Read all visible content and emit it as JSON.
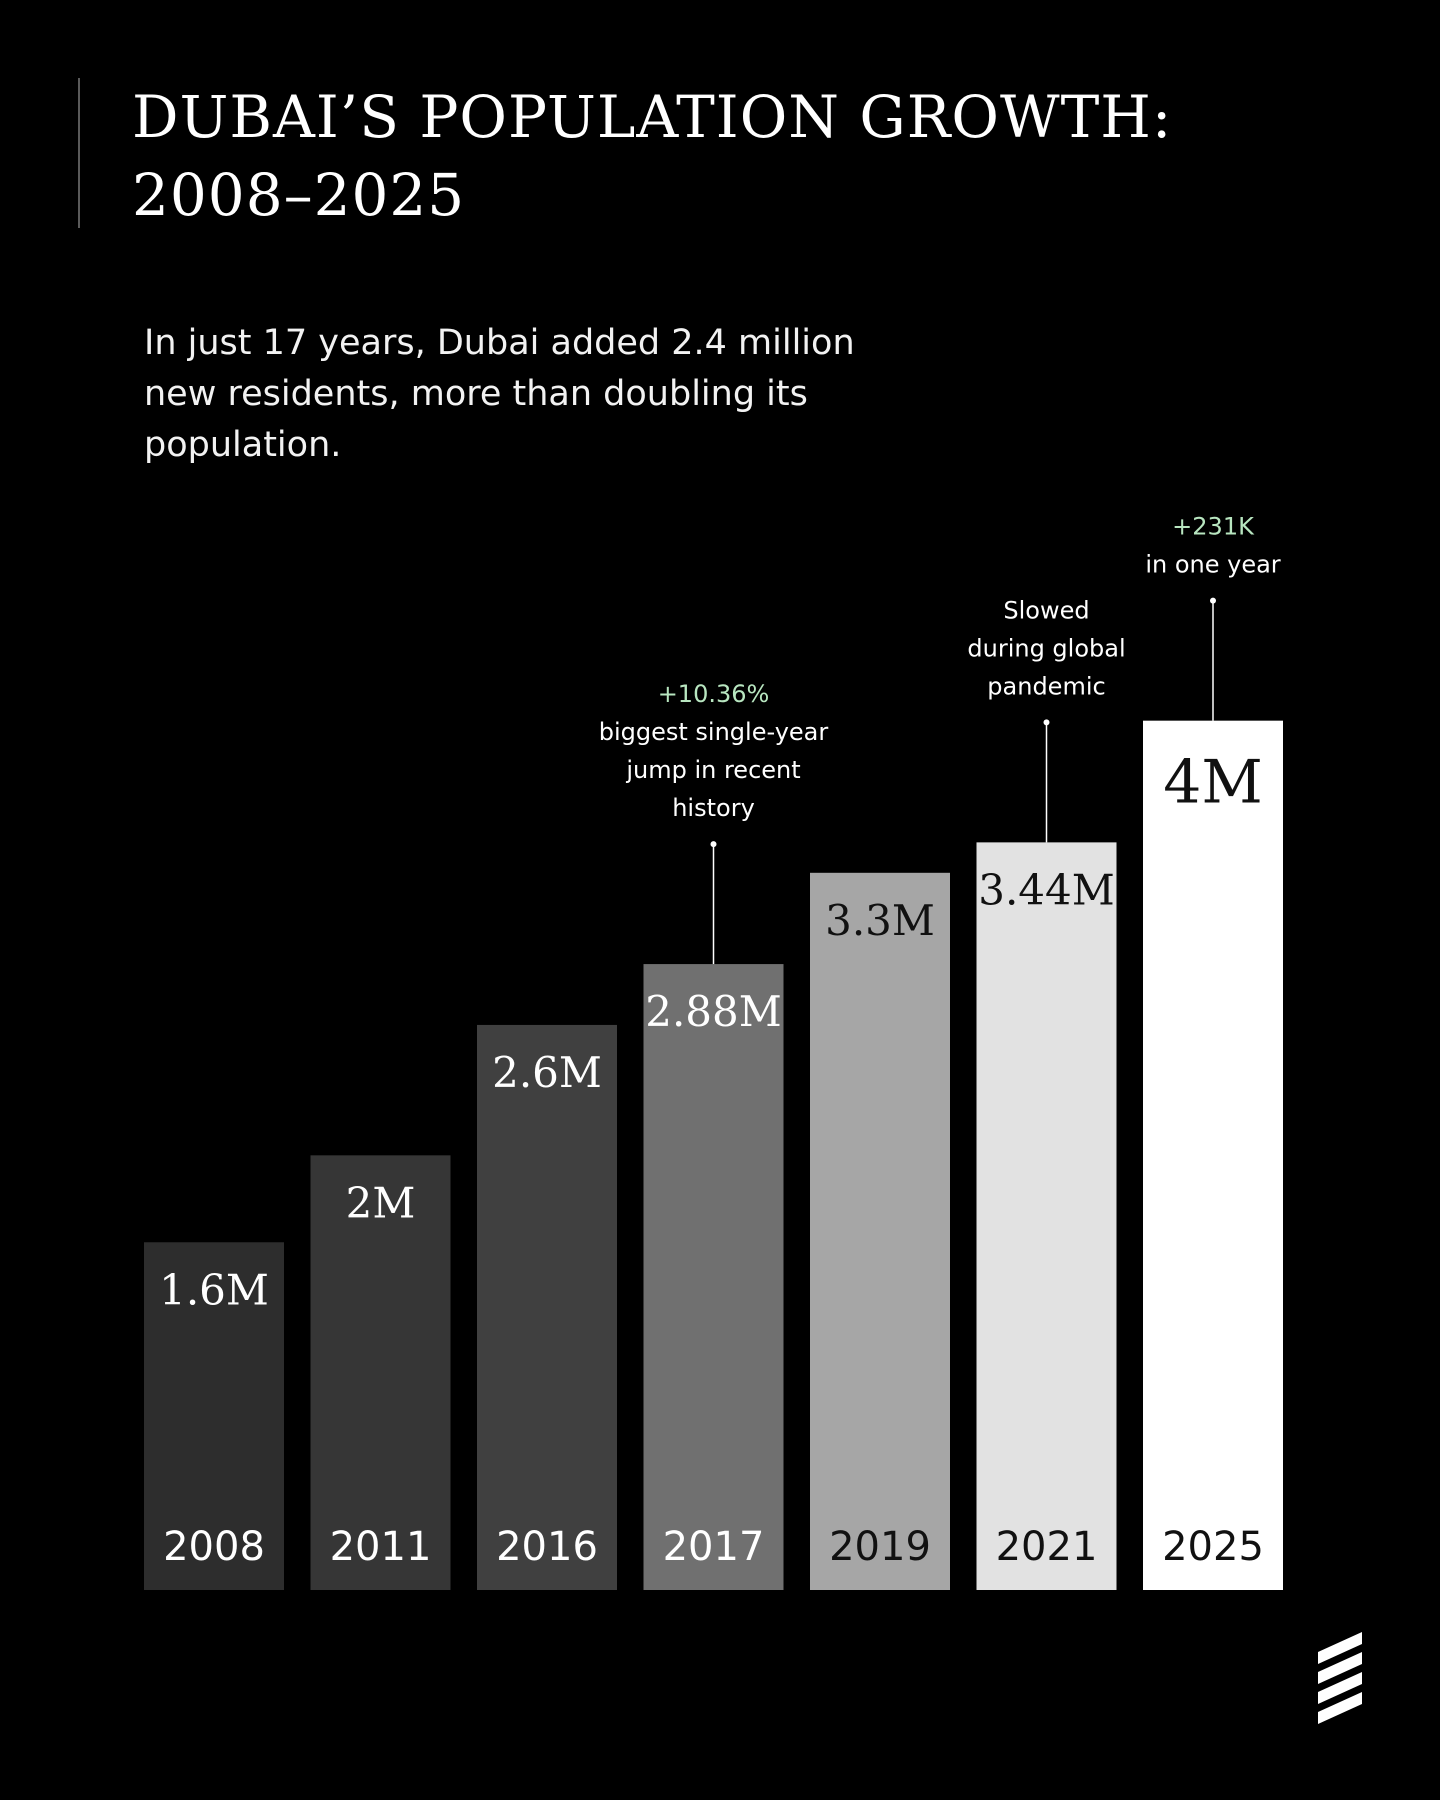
{
  "title_line1": "DUBAI’S POPULATION GROWTH:",
  "title_line2": "2008–2025",
  "subtitle": "In just 17 years, Dubai added 2.4 million new residents, more than doubling its population.",
  "colors": {
    "background": "#000000",
    "highlight": "#b8e6c0",
    "bars": [
      "#2d2d2d",
      "#363636",
      "#404040",
      "#707070",
      "#a6a6a6",
      "#e2e2e2",
      "#ffffff"
    ]
  },
  "brand_logo": {
    "icon": "stacked-slashes-logo-icon"
  },
  "chart_data": {
    "type": "bar",
    "categories": [
      "2008",
      "2011",
      "2016",
      "2017",
      "2019",
      "2021",
      "2025"
    ],
    "values": [
      1.6,
      2.0,
      2.6,
      2.88,
      3.3,
      3.44,
      4.0
    ],
    "value_labels": [
      "1.6M",
      "2M",
      "2.6M",
      "2.88M",
      "3.3M",
      "3.44M",
      "4M"
    ],
    "unit": "M",
    "ylim": [
      0,
      4.5
    ],
    "grid": false,
    "legend": "none",
    "annotations": [
      {
        "category": "2017",
        "highlight": "+10.36%",
        "lines": [
          "biggest single-year",
          "jump in recent",
          "history"
        ]
      },
      {
        "category": "2021",
        "highlight": "",
        "lines": [
          "Slowed",
          "during global",
          "pandemic"
        ]
      },
      {
        "category": "2025",
        "highlight": "+231K",
        "lines": [
          "in one year"
        ]
      }
    ]
  }
}
